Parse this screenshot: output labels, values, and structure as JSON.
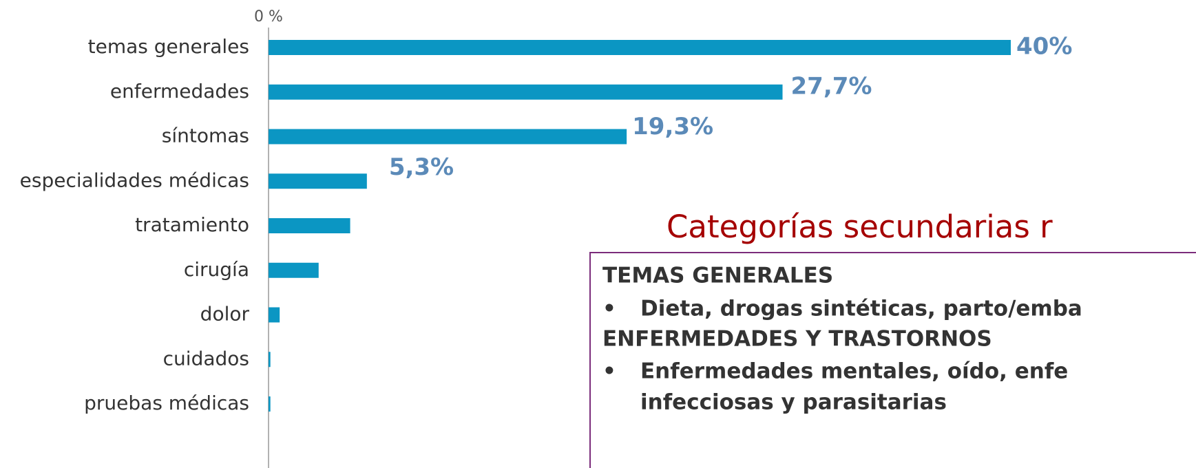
{
  "chart_data": {
    "type": "bar",
    "orientation": "horizontal",
    "categories": [
      "temas generales",
      "enfermedades",
      "síntomas",
      "especialidades médicas",
      "tratamiento",
      "cirugía",
      "dolor",
      "cuidados",
      "pruebas médicas"
    ],
    "values": [
      40,
      27.7,
      19.3,
      5.3,
      4.4,
      2.7,
      0.6,
      0.1,
      0.1
    ],
    "value_labels": [
      "40%",
      "27,7%",
      "19,3%",
      "5,3%",
      null,
      null,
      null,
      null,
      null
    ],
    "color": "#0b96c3",
    "xlim": [
      0,
      40
    ],
    "xticks": [
      {
        "value": 0,
        "label": "0 %"
      }
    ]
  },
  "panel": {
    "title": "Categorías secundarias r",
    "sections": [
      {
        "heading": "TEMAS GENERALES",
        "items": [
          "Dieta, drogas sintéticas, parto/emba"
        ]
      },
      {
        "heading": "ENFERMEDADES Y TRASTORNOS",
        "items": [
          "Enfermedades mentales, oído, enfe",
          "infecciosas y parasitarias"
        ]
      }
    ]
  }
}
